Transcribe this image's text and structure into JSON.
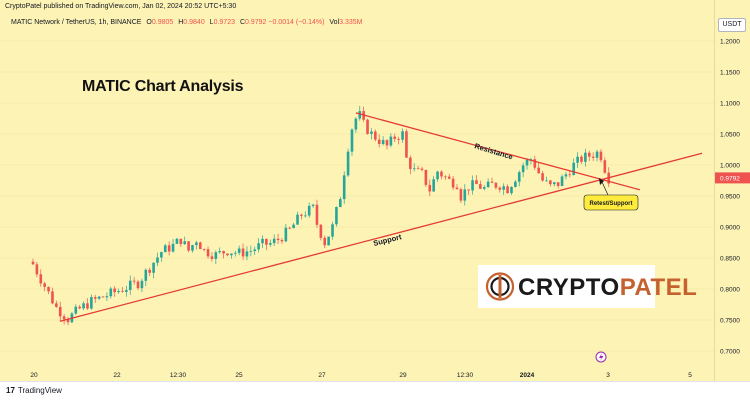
{
  "header": {
    "publish_line": "CryptoPatel published on TradingView.com, Jan 02, 2024 20:52 UTC+5:30",
    "symbol": "MATIC Network / TetherUS, 1h, BINANCE",
    "ohlc": {
      "o_key": "O",
      "o": "0.9805",
      "h_key": "H",
      "h": "0.9840",
      "l_key": "L",
      "l": "0.9723",
      "c_key": "C",
      "c": "0.9792",
      "change": "−0.0014 (−0.14%)",
      "vol_key": "Vol",
      "vol": "3.335M"
    }
  },
  "currency": "USDT",
  "title": "MATIC Chart Analysis",
  "footer": {
    "brand": "TradingView",
    "brand_mark": "17"
  },
  "logo": {
    "text_a": "CRYPTO",
    "text_b": "PATEL"
  },
  "colors": {
    "background": "#fcf3b5",
    "up": "#26a69a",
    "down": "#ef5350",
    "trendline": "#e53935",
    "callout": "#ffeb3b",
    "logo_accent": "#c4612e"
  },
  "chart_data": {
    "type": "candlestick",
    "symbol": "MATIC/USDT",
    "interval": "1h",
    "ylim": [
      0.68,
      1.23
    ],
    "y_ticks": [
      1.2,
      1.15,
      1.1,
      1.05,
      1.0,
      0.95,
      0.9,
      0.85,
      0.8,
      0.75,
      0.7
    ],
    "y_tick_labels": [
      "1.2000",
      "1.1500",
      "1.1000",
      "1.0500",
      "1.0000",
      "0.9500",
      "0.9000",
      "0.8500",
      "0.8000",
      "0.7500",
      "0.7000"
    ],
    "x_tick_labels": [
      "20",
      "22",
      "12:30",
      "25",
      "27",
      "29",
      "12:30",
      "2024",
      "3",
      "5"
    ],
    "last_price": 0.9792,
    "last_price_label": "0.9792",
    "close_path": [
      [
        0,
        0.84
      ],
      [
        3,
        0.805
      ],
      [
        6,
        0.77
      ],
      [
        9,
        0.752
      ],
      [
        12,
        0.768
      ],
      [
        15,
        0.78
      ],
      [
        19,
        0.79
      ],
      [
        23,
        0.8
      ],
      [
        27,
        0.81
      ],
      [
        30,
        0.835
      ],
      [
        33,
        0.86
      ],
      [
        36,
        0.87
      ],
      [
        38,
        0.88
      ],
      [
        40,
        0.862
      ],
      [
        42,
        0.88
      ],
      [
        44,
        0.862
      ],
      [
        47,
        0.855
      ],
      [
        50,
        0.862
      ],
      [
        53,
        0.858
      ],
      [
        56,
        0.862
      ],
      [
        59,
        0.872
      ],
      [
        61,
        0.873
      ],
      [
        63,
        0.88
      ],
      [
        66,
        0.895
      ],
      [
        69,
        0.92
      ],
      [
        72,
        0.93
      ],
      [
        73,
        0.905
      ],
      [
        75,
        0.875
      ],
      [
        77,
        0.9
      ],
      [
        79,
        0.95
      ],
      [
        80,
        0.99
      ],
      [
        81,
        1.03
      ],
      [
        82,
        1.06
      ],
      [
        83,
        1.075
      ],
      [
        84,
        1.08
      ],
      [
        85,
        1.065
      ],
      [
        87,
        1.05
      ],
      [
        89,
        1.04
      ],
      [
        91,
        1.03
      ],
      [
        93,
        1.045
      ],
      [
        95,
        1.05
      ],
      [
        96,
        1.01
      ],
      [
        98,
        0.99
      ],
      [
        100,
        0.985
      ],
      [
        102,
        0.96
      ],
      [
        104,
        0.99
      ],
      [
        107,
        0.975
      ],
      [
        109,
        0.97
      ],
      [
        110,
        0.95
      ],
      [
        112,
        0.965
      ],
      [
        114,
        0.968
      ],
      [
        116,
        0.962
      ],
      [
        118,
        0.968
      ],
      [
        120,
        0.968
      ],
      [
        122,
        0.962
      ],
      [
        124,
        0.98
      ],
      [
        126,
        1.0
      ],
      [
        128,
        1.01
      ],
      [
        129,
        1.0
      ],
      [
        131,
        0.975
      ],
      [
        133,
        0.965
      ],
      [
        135,
        0.97
      ],
      [
        137,
        0.985
      ],
      [
        139,
        1.0
      ],
      [
        141,
        1.01
      ],
      [
        143,
        1.015
      ],
      [
        145,
        1.02
      ],
      [
        146,
        1.015
      ],
      [
        147,
        0.995
      ],
      [
        148,
        0.979
      ]
    ],
    "trendlines": [
      {
        "name": "Support",
        "from": [
          7,
          0.748
        ],
        "to": [
          172,
          1.019
        ]
      },
      {
        "name": "Resistance",
        "from": [
          83,
          1.084
        ],
        "to": [
          156,
          0.96
        ]
      }
    ],
    "annotations": [
      "Resistance",
      "Support",
      "Retest/Support"
    ]
  }
}
